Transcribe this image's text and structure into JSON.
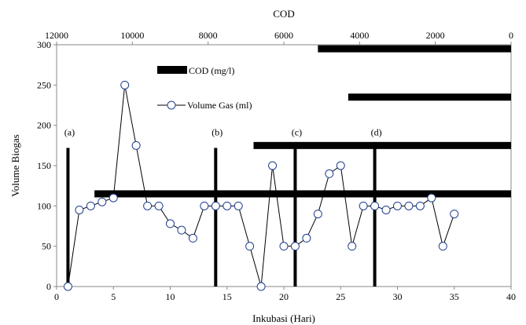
{
  "chart_data": {
    "type": "line",
    "title": "",
    "xlabel": "Inkubasi (Hari)",
    "ylabel": "Volume Biogas",
    "x2label": "COD",
    "xlim": [
      0,
      40
    ],
    "ylim": [
      0,
      300
    ],
    "x2lim": [
      12000,
      0
    ],
    "xticks": [
      0,
      5,
      10,
      15,
      20,
      25,
      30,
      35,
      40
    ],
    "yticks": [
      0,
      50,
      100,
      150,
      200,
      250,
      300
    ],
    "x2ticks": [
      12000,
      10000,
      8000,
      6000,
      4000,
      2000,
      0
    ],
    "grid": false,
    "legend_position": "top-center",
    "series": [
      {
        "name": "Volume Gas (ml)",
        "kind": "line-marker",
        "color": "#000000",
        "marker_fill": "#ffffff",
        "marker_stroke": "#1f3f8f",
        "x": [
          1,
          2,
          3,
          4,
          5,
          6,
          7,
          8,
          9,
          10,
          11,
          12,
          13,
          14,
          15,
          16,
          17,
          18,
          19,
          20,
          21,
          22,
          23,
          24,
          25,
          26,
          27,
          28,
          29,
          30,
          31,
          32,
          33,
          34,
          35
        ],
        "y": [
          0,
          95,
          100,
          105,
          110,
          250,
          175,
          100,
          100,
          78,
          70,
          60,
          100,
          100,
          100,
          100,
          50,
          0,
          150,
          50,
          50,
          60,
          90,
          140,
          150,
          50,
          100,
          100,
          95,
          100,
          100,
          100,
          110,
          50,
          90
        ]
      },
      {
        "name": "COD (mg/l)",
        "kind": "thick-bars",
        "color": "#000000",
        "note_axis": "COD values on top axis; bar height = day-scale y position",
        "bars": [
          {
            "cod_start": 11000,
            "cod_end": 0,
            "y": 115
          },
          {
            "cod_start": 6800,
            "cod_end": 0,
            "y": 175
          },
          {
            "cod_start": 4300,
            "cod_end": 0,
            "y": 235
          },
          {
            "cod_start": 5100,
            "cod_end": 0,
            "y": 295
          }
        ]
      }
    ],
    "vertical_markers": [
      {
        "label": "(a)",
        "x": 1,
        "y_top": 172
      },
      {
        "label": "(b)",
        "x": 14,
        "y_top": 172
      },
      {
        "label": "(c)",
        "x": 21,
        "y_top": 172
      },
      {
        "label": "(d)",
        "x": 28,
        "y_top": 172
      }
    ],
    "legend": [
      {
        "label": "COD (mg/l)",
        "style": "thick-bar"
      },
      {
        "label": "Volume Gas (ml)",
        "style": "line-marker"
      }
    ]
  }
}
